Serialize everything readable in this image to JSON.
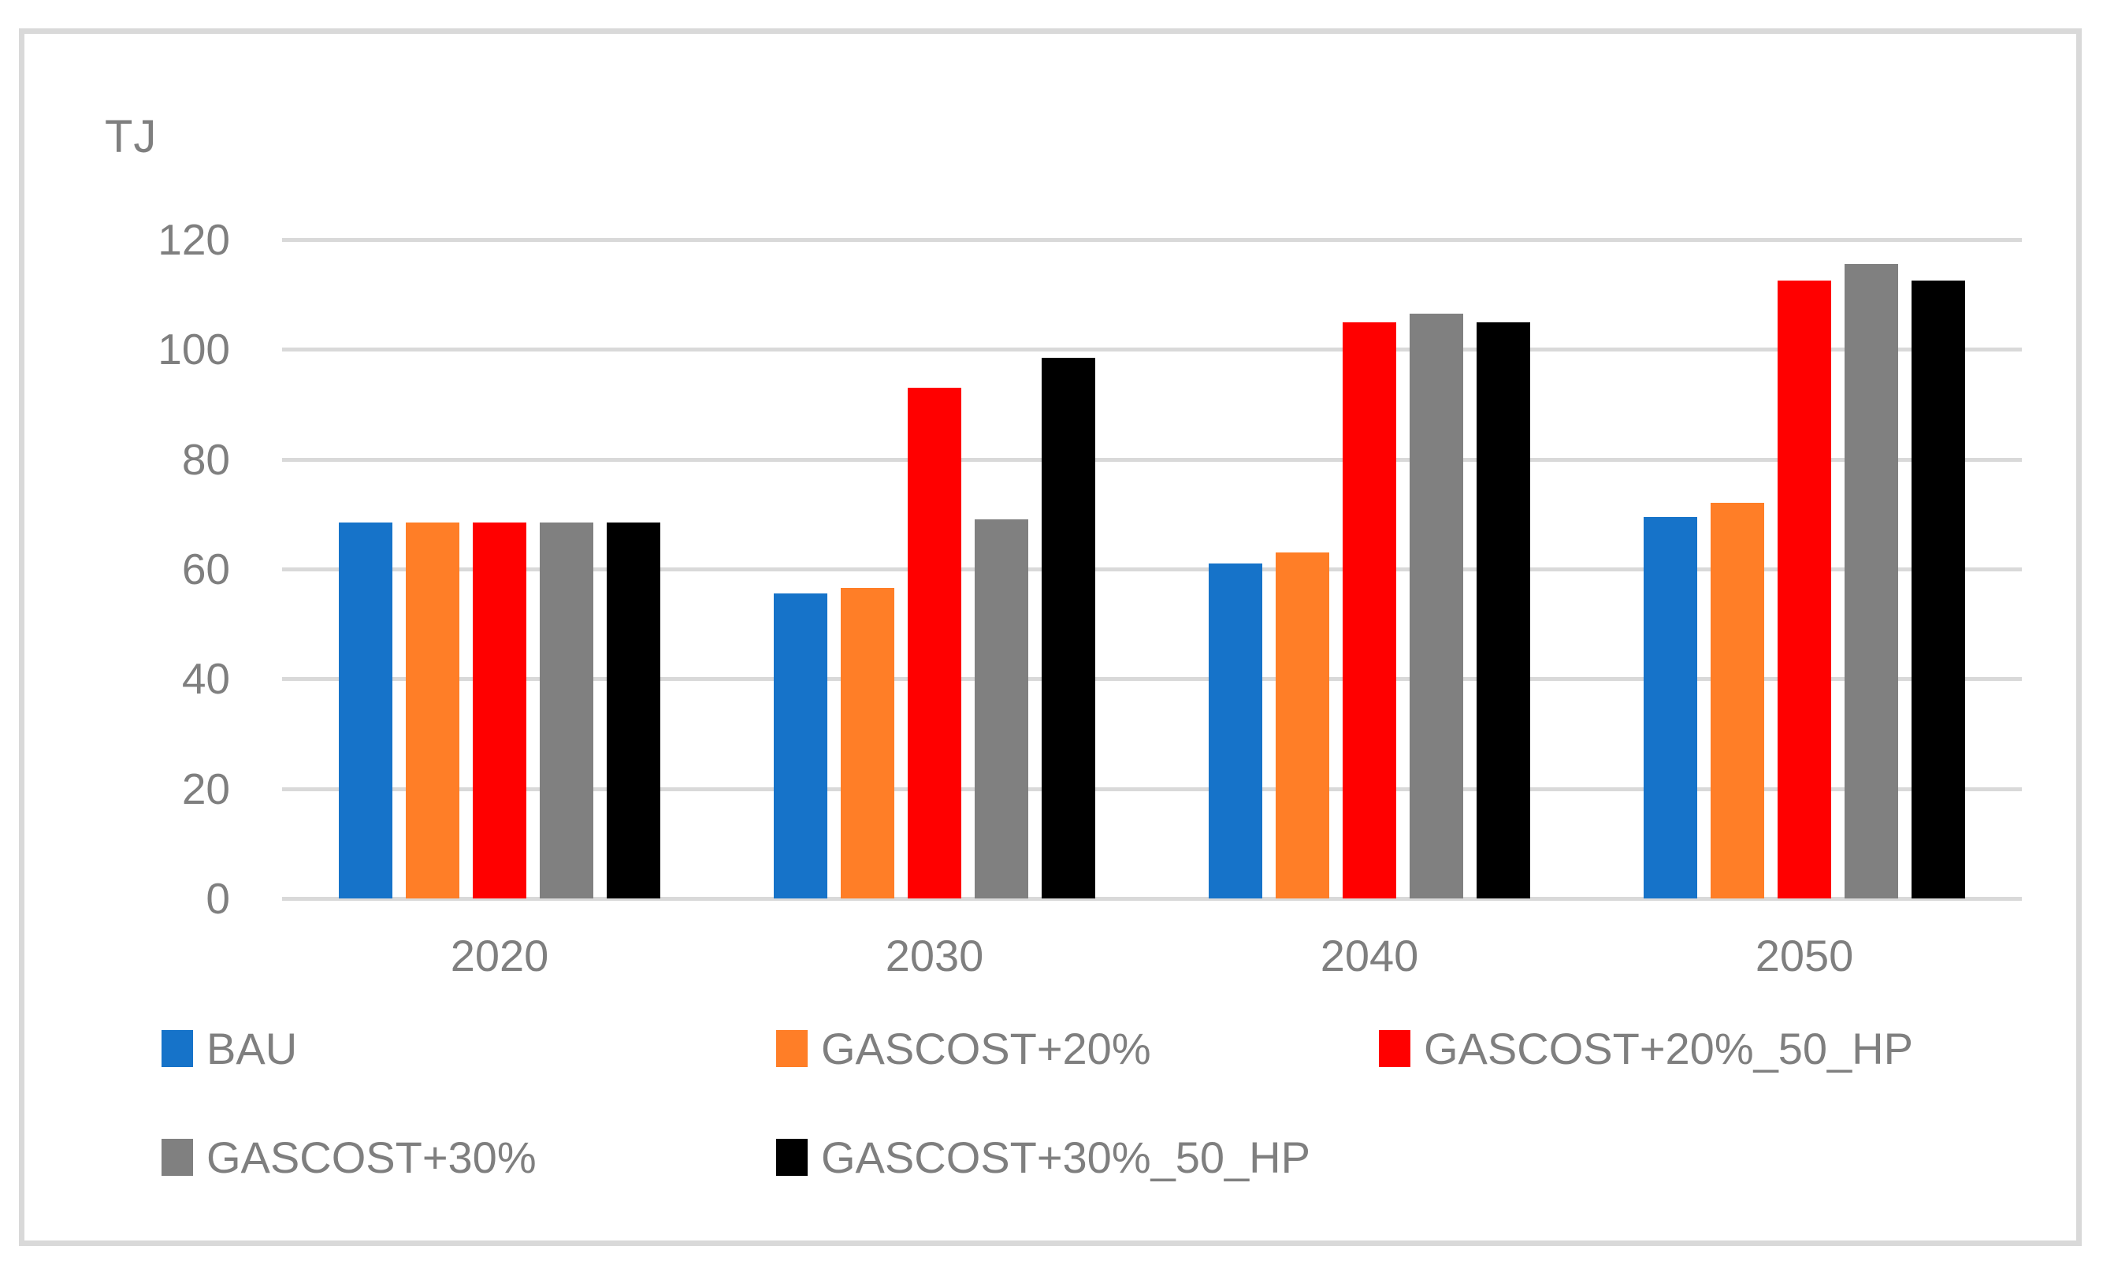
{
  "chart_data": {
    "type": "bar",
    "title": "",
    "ylabel": "TJ",
    "xlabel": "",
    "ylim": [
      0,
      120
    ],
    "yticks": [
      0,
      20,
      40,
      60,
      80,
      100,
      120
    ],
    "grid": "horizontal",
    "legend_position": "bottom",
    "categories": [
      "2020",
      "2030",
      "2040",
      "2050"
    ],
    "series": [
      {
        "name": "BAU",
        "color": "#1673C9",
        "values": [
          68.5,
          55.5,
          61,
          69.5
        ]
      },
      {
        "name": "GASCOST+20%",
        "color": "#FF7E27",
        "values": [
          68.5,
          56.5,
          63,
          72
        ]
      },
      {
        "name": "GASCOST+20%_50_HP",
        "color": "#FF0000",
        "values": [
          68.5,
          93,
          105,
          112.5
        ]
      },
      {
        "name": "GASCOST+30%",
        "color": "#808080",
        "values": [
          68.5,
          69,
          106.5,
          115.5
        ]
      },
      {
        "name": "GASCOST+30%_50_HP",
        "color": "#000000",
        "values": [
          68.5,
          98.5,
          105,
          112.5
        ]
      }
    ],
    "colors": {
      "gridline": "#D9D9D9",
      "frame_border": "#D9D9D9",
      "axis_text": "#7F7F7F"
    }
  }
}
